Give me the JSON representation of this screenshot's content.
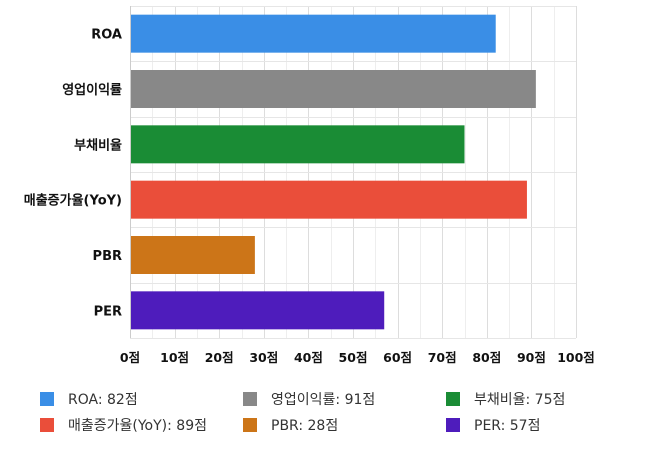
{
  "chart_data": {
    "type": "bar",
    "orientation": "horizontal",
    "categories": [
      "ROA",
      "영업이익률",
      "부채비율",
      "매출증가율(YoY)",
      "PBR",
      "PER"
    ],
    "values": [
      82,
      91,
      75,
      89,
      28,
      57
    ],
    "colors": [
      "#3a8ee6",
      "#888888",
      "#1a8c35",
      "#ea4e3a",
      "#cc7518",
      "#4e1cbc"
    ],
    "xlim": [
      0,
      100
    ],
    "x_ticks": [
      0,
      10,
      20,
      30,
      40,
      50,
      60,
      70,
      80,
      90,
      100
    ],
    "tick_suffix": "점",
    "grid": true,
    "legend_position": "bottom",
    "legend": [
      {
        "label": "ROA: 82점",
        "color": "#3a8ee6"
      },
      {
        "label": "영업이익률: 91점",
        "color": "#888888"
      },
      {
        "label": "부채비율: 75점",
        "color": "#1a8c35"
      },
      {
        "label": "매출증가율(YoY): 89점",
        "color": "#ea4e3a"
      },
      {
        "label": "PBR: 28점",
        "color": "#cc7518"
      },
      {
        "label": "PER: 57점",
        "color": "#4e1cbc"
      }
    ]
  }
}
